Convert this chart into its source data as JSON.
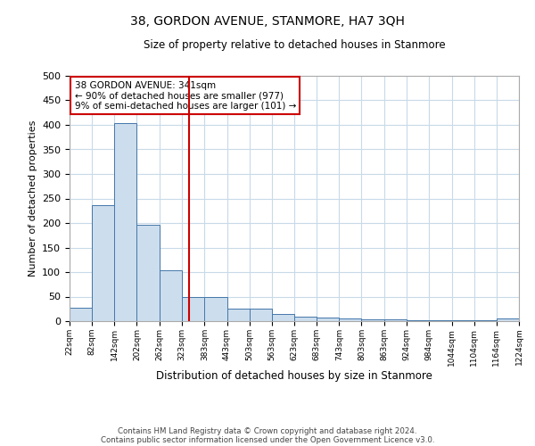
{
  "title": "38, GORDON AVENUE, STANMORE, HA7 3QH",
  "subtitle": "Size of property relative to detached houses in Stanmore",
  "xlabel": "Distribution of detached houses by size in Stanmore",
  "ylabel": "Number of detached properties",
  "property_label": "38 GORDON AVENUE: 341sqm",
  "annotation_line1": "← 90% of detached houses are smaller (977)",
  "annotation_line2": "9% of semi-detached houses are larger (101) →",
  "bin_edges": [
    22,
    82,
    142,
    202,
    262,
    323,
    383,
    443,
    503,
    563,
    623,
    683,
    743,
    803,
    863,
    924,
    984,
    1044,
    1104,
    1164,
    1224
  ],
  "bar_heights": [
    27,
    237,
    404,
    197,
    104,
    49,
    50,
    25,
    25,
    14,
    9,
    7,
    5,
    4,
    3,
    2,
    1,
    1,
    1,
    5
  ],
  "bar_color": "#ccdded",
  "bar_edge_color": "#4477aa",
  "vline_x": 341,
  "vline_color": "#cc0000",
  "annotation_box_color": "#cc0000",
  "ylim": [
    0,
    500
  ],
  "yticks": [
    0,
    50,
    100,
    150,
    200,
    250,
    300,
    350,
    400,
    450,
    500
  ],
  "background_color": "#ffffff",
  "grid_color": "#c8dae8",
  "footer_line1": "Contains HM Land Registry data © Crown copyright and database right 2024.",
  "footer_line2": "Contains public sector information licensed under the Open Government Licence v3.0."
}
